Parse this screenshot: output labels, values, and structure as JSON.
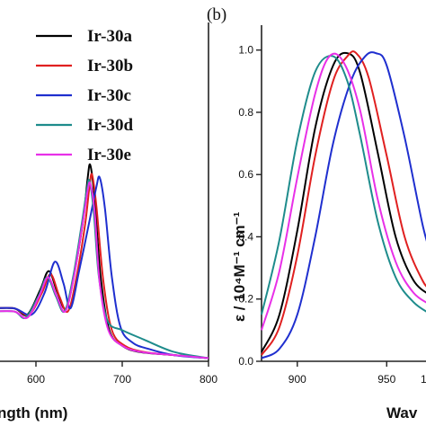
{
  "chart_data": [
    {
      "type": "line",
      "panel_label": "",
      "xlabel": "ngth (nm)",
      "ylabel": "",
      "xlim": [
        550,
        800
      ],
      "ylim": [
        0,
        1.08
      ],
      "x_ticks": [
        600,
        700,
        800
      ],
      "x_tick_labels": [
        "600",
        "700",
        "800"
      ],
      "grid": false,
      "legend": "top-left",
      "series": [
        {
          "name": "Ir-30a",
          "color": "#000000",
          "x": [
            550,
            575,
            590,
            605,
            615,
            625,
            635,
            645,
            655,
            660,
            663,
            668,
            675,
            685,
            700,
            720,
            760,
            800
          ],
          "y": [
            0.17,
            0.17,
            0.15,
            0.23,
            0.29,
            0.22,
            0.17,
            0.29,
            0.46,
            0.59,
            0.63,
            0.52,
            0.27,
            0.1,
            0.05,
            0.03,
            0.02,
            0.01
          ]
        },
        {
          "name": "Ir-30b",
          "color": "#e02020",
          "x": [
            550,
            575,
            592,
            607,
            617,
            627,
            637,
            647,
            657,
            662,
            665,
            670,
            678,
            688,
            703,
            725,
            760,
            800
          ],
          "y": [
            0.17,
            0.17,
            0.15,
            0.22,
            0.28,
            0.21,
            0.16,
            0.27,
            0.44,
            0.56,
            0.6,
            0.5,
            0.26,
            0.1,
            0.05,
            0.03,
            0.02,
            0.01
          ]
        },
        {
          "name": "Ir-30c",
          "color": "#1f2fcf",
          "x": [
            550,
            575,
            595,
            610,
            622,
            632,
            640,
            650,
            662,
            670,
            674,
            680,
            688,
            698,
            712,
            730,
            760,
            800
          ],
          "y": [
            0.17,
            0.17,
            0.15,
            0.22,
            0.32,
            0.25,
            0.17,
            0.29,
            0.45,
            0.56,
            0.59,
            0.49,
            0.27,
            0.11,
            0.06,
            0.04,
            0.02,
            0.01
          ]
        },
        {
          "name": "Ir-30d",
          "color": "#1e8c8c",
          "x": [
            550,
            575,
            588,
            603,
            613,
            623,
            633,
            643,
            653,
            659,
            662,
            667,
            673,
            683,
            700,
            725,
            760,
            800
          ],
          "y": [
            0.16,
            0.16,
            0.14,
            0.21,
            0.27,
            0.21,
            0.16,
            0.27,
            0.44,
            0.55,
            0.58,
            0.48,
            0.27,
            0.13,
            0.1,
            0.07,
            0.03,
            0.01
          ]
        },
        {
          "name": "Ir-30e",
          "color": "#e830e8",
          "x": [
            550,
            575,
            590,
            604,
            614,
            624,
            634,
            644,
            654,
            660,
            663,
            668,
            674,
            684,
            700,
            722,
            760,
            800
          ],
          "y": [
            0.16,
            0.16,
            0.14,
            0.21,
            0.27,
            0.21,
            0.16,
            0.27,
            0.44,
            0.55,
            0.57,
            0.48,
            0.25,
            0.1,
            0.05,
            0.03,
            0.02,
            0.01
          ]
        }
      ]
    },
    {
      "type": "line",
      "panel_label": "(b)",
      "xlabel": "Wav",
      "ylabel": "ε / 10⁴M⁻¹ cm⁻¹",
      "xlim": [
        880,
        975
      ],
      "ylim": [
        0.0,
        1.08
      ],
      "x_ticks": [
        900,
        950
      ],
      "x_tick_labels": [
        "900",
        "950"
      ],
      "extra_tick_label": "1",
      "y_ticks": [
        0.0,
        0.2,
        0.4,
        0.6,
        0.8,
        1.0
      ],
      "y_tick_labels": [
        "0.0",
        "0.2",
        "0.4",
        "0.6",
        "0.8",
        "1.0"
      ],
      "grid": false,
      "series": [
        {
          "name": "Ir-30a",
          "color": "#000000",
          "x": [
            880,
            890,
            900,
            910,
            920,
            928,
            935,
            945,
            955,
            965,
            975
          ],
          "y": [
            0.03,
            0.15,
            0.42,
            0.75,
            0.95,
            0.99,
            0.93,
            0.67,
            0.4,
            0.26,
            0.21
          ]
        },
        {
          "name": "Ir-30b",
          "color": "#e02020",
          "x": [
            880,
            890,
            900,
            910,
            920,
            928,
            933,
            940,
            950,
            960,
            970,
            975
          ],
          "y": [
            0.02,
            0.11,
            0.34,
            0.66,
            0.9,
            0.98,
            0.99,
            0.91,
            0.66,
            0.4,
            0.26,
            0.23
          ]
        },
        {
          "name": "Ir-30c",
          "color": "#1f2fcf",
          "x": [
            880,
            890,
            900,
            910,
            920,
            930,
            938,
            944,
            950,
            960,
            970,
            975
          ],
          "y": [
            0.01,
            0.04,
            0.15,
            0.4,
            0.7,
            0.9,
            0.98,
            0.99,
            0.95,
            0.72,
            0.44,
            0.34
          ]
        },
        {
          "name": "Ir-30d",
          "color": "#1e8c8c",
          "x": [
            880,
            890,
            900,
            910,
            920,
            928,
            935,
            945,
            955,
            965,
            975
          ],
          "y": [
            0.15,
            0.39,
            0.71,
            0.93,
            0.98,
            0.9,
            0.73,
            0.45,
            0.27,
            0.19,
            0.15
          ]
        },
        {
          "name": "Ir-30e",
          "color": "#e830e8",
          "x": [
            880,
            890,
            900,
            910,
            918,
            926,
            935,
            945,
            955,
            965,
            975
          ],
          "y": [
            0.1,
            0.29,
            0.59,
            0.86,
            0.98,
            0.96,
            0.81,
            0.52,
            0.32,
            0.22,
            0.18
          ]
        }
      ]
    }
  ]
}
